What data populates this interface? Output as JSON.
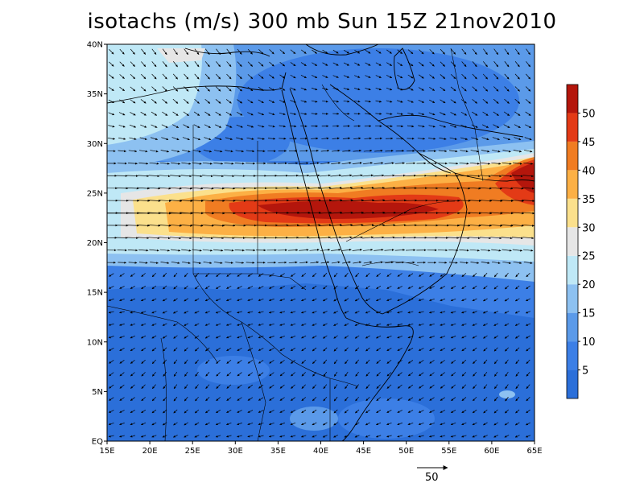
{
  "title": "isotachs (m/s) 300 mb Sun 15Z 21nov2010",
  "lat_labels": [
    "EQ",
    "5N",
    "10N",
    "15N",
    "20N",
    "25N",
    "30N",
    "35N",
    "40N"
  ],
  "lon_labels": [
    "15E",
    "20E",
    "25E",
    "30E",
    "35E",
    "40E",
    "45E",
    "50E",
    "55E",
    "60E",
    "65E"
  ],
  "colorbar": {
    "labels": [
      "5",
      "10",
      "15",
      "20",
      "25",
      "30",
      "35",
      "40",
      "45",
      "50"
    ],
    "colors": [
      "#2b6fd9",
      "#3c7fe6",
      "#5b9ae9",
      "#8dc1f1",
      "#bfe8f6",
      "#e6e6e6",
      "#fbe08c",
      "#fcb045",
      "#f07c22",
      "#e33a16",
      "#b4160c"
    ]
  },
  "reference_vector": {
    "label": "50"
  },
  "map_data": {
    "lat_range": [
      0,
      40
    ],
    "lon_range": [
      15,
      65
    ],
    "jet_core": {
      "lon_range": [
        28,
        58
      ],
      "lat": 23.5,
      "max_speed": 55
    }
  }
}
